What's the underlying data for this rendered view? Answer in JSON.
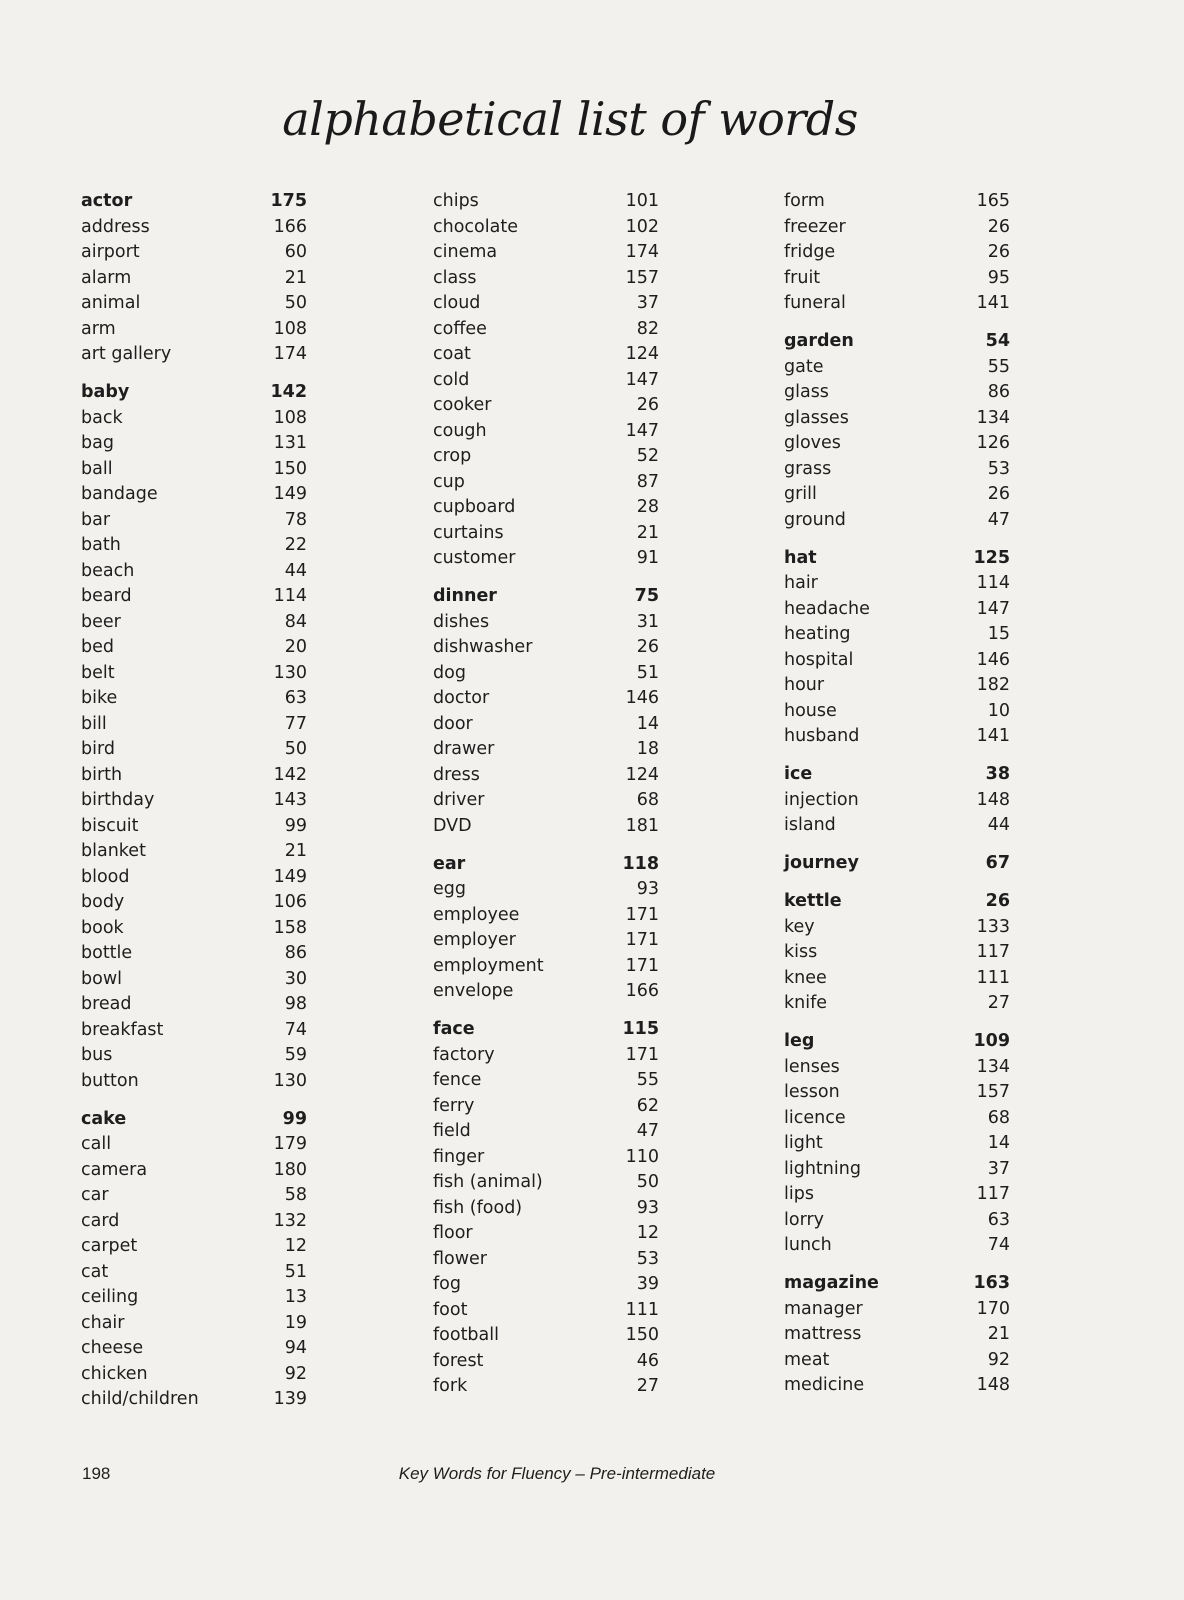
{
  "title": "alphabetical list of words",
  "columns": [
    [
      {
        "word": "actor",
        "page": "175",
        "bold": true
      },
      {
        "word": "address",
        "page": "166"
      },
      {
        "word": "airport",
        "page": "60"
      },
      {
        "word": "alarm",
        "page": "21"
      },
      {
        "word": "animal",
        "page": "50"
      },
      {
        "word": "arm",
        "page": "108"
      },
      {
        "word": "art gallery",
        "page": "174"
      },
      {
        "word": "baby",
        "page": "142",
        "bold": true
      },
      {
        "word": "back",
        "page": "108"
      },
      {
        "word": "bag",
        "page": "131"
      },
      {
        "word": "ball",
        "page": "150"
      },
      {
        "word": "bandage",
        "page": "149"
      },
      {
        "word": "bar",
        "page": "78"
      },
      {
        "word": "bath",
        "page": "22"
      },
      {
        "word": "beach",
        "page": "44"
      },
      {
        "word": "beard",
        "page": "114"
      },
      {
        "word": "beer",
        "page": "84"
      },
      {
        "word": "bed",
        "page": "20"
      },
      {
        "word": "belt",
        "page": "130"
      },
      {
        "word": "bike",
        "page": "63"
      },
      {
        "word": "bill",
        "page": "77"
      },
      {
        "word": "bird",
        "page": "50"
      },
      {
        "word": "birth",
        "page": "142"
      },
      {
        "word": "birthday",
        "page": "143"
      },
      {
        "word": "biscuit",
        "page": "99"
      },
      {
        "word": "blanket",
        "page": "21"
      },
      {
        "word": "blood",
        "page": "149"
      },
      {
        "word": "body",
        "page": "106"
      },
      {
        "word": "book",
        "page": "158"
      },
      {
        "word": "bottle",
        "page": "86"
      },
      {
        "word": "bowl",
        "page": "30"
      },
      {
        "word": "bread",
        "page": "98"
      },
      {
        "word": "breakfast",
        "page": "74"
      },
      {
        "word": "bus",
        "page": "59"
      },
      {
        "word": "button",
        "page": "130"
      },
      {
        "word": "cake",
        "page": "99",
        "bold": true
      },
      {
        "word": "call",
        "page": "179"
      },
      {
        "word": "camera",
        "page": "180"
      },
      {
        "word": "car",
        "page": "58"
      },
      {
        "word": "card",
        "page": "132"
      },
      {
        "word": "carpet",
        "page": "12"
      },
      {
        "word": "cat",
        "page": "51"
      },
      {
        "word": "ceiling",
        "page": "13"
      },
      {
        "word": "chair",
        "page": "19"
      },
      {
        "word": "cheese",
        "page": "94"
      },
      {
        "word": "chicken",
        "page": "92"
      },
      {
        "word": "child/children",
        "page": "139"
      }
    ],
    [
      {
        "word": "chips",
        "page": "101"
      },
      {
        "word": "chocolate",
        "page": "102"
      },
      {
        "word": "cinema",
        "page": "174"
      },
      {
        "word": "class",
        "page": "157"
      },
      {
        "word": "cloud",
        "page": "37"
      },
      {
        "word": "coffee",
        "page": "82"
      },
      {
        "word": "coat",
        "page": "124"
      },
      {
        "word": "cold",
        "page": "147"
      },
      {
        "word": "cooker",
        "page": "26"
      },
      {
        "word": "cough",
        "page": "147"
      },
      {
        "word": "crop",
        "page": "52"
      },
      {
        "word": "cup",
        "page": "87"
      },
      {
        "word": "cupboard",
        "page": "28"
      },
      {
        "word": "curtains",
        "page": "21"
      },
      {
        "word": "customer",
        "page": "91"
      },
      {
        "word": "dinner",
        "page": "75",
        "bold": true
      },
      {
        "word": "dishes",
        "page": "31"
      },
      {
        "word": "dishwasher",
        "page": "26"
      },
      {
        "word": "dog",
        "page": "51"
      },
      {
        "word": "doctor",
        "page": "146"
      },
      {
        "word": "door",
        "page": "14"
      },
      {
        "word": "drawer",
        "page": "18"
      },
      {
        "word": "dress",
        "page": "124"
      },
      {
        "word": "driver",
        "page": "68"
      },
      {
        "word": "DVD",
        "page": "181"
      },
      {
        "word": "ear",
        "page": "118",
        "bold": true
      },
      {
        "word": "egg",
        "page": "93"
      },
      {
        "word": "employee",
        "page": "171"
      },
      {
        "word": "employer",
        "page": "171"
      },
      {
        "word": "employment",
        "page": "171"
      },
      {
        "word": "envelope",
        "page": "166"
      },
      {
        "word": "face",
        "page": "115",
        "bold": true
      },
      {
        "word": "factory",
        "page": "171"
      },
      {
        "word": "fence",
        "page": "55"
      },
      {
        "word": "ferry",
        "page": "62"
      },
      {
        "word": "field",
        "page": "47"
      },
      {
        "word": "finger",
        "page": "110"
      },
      {
        "word": "fish (animal)",
        "page": "50"
      },
      {
        "word": "fish (food)",
        "page": "93"
      },
      {
        "word": "floor",
        "page": "12"
      },
      {
        "word": "flower",
        "page": "53"
      },
      {
        "word": "fog",
        "page": "39"
      },
      {
        "word": "foot",
        "page": "111"
      },
      {
        "word": "football",
        "page": "150"
      },
      {
        "word": "forest",
        "page": "46"
      },
      {
        "word": "fork",
        "page": "27"
      }
    ],
    [
      {
        "word": "form",
        "page": "165"
      },
      {
        "word": "freezer",
        "page": "26"
      },
      {
        "word": "fridge",
        "page": "26"
      },
      {
        "word": "fruit",
        "page": "95"
      },
      {
        "word": "funeral",
        "page": "141"
      },
      {
        "word": "garden",
        "page": "54",
        "bold": true
      },
      {
        "word": "gate",
        "page": "55"
      },
      {
        "word": "glass",
        "page": "86"
      },
      {
        "word": "glasses",
        "page": "134"
      },
      {
        "word": "gloves",
        "page": "126"
      },
      {
        "word": "grass",
        "page": "53"
      },
      {
        "word": "grill",
        "page": "26"
      },
      {
        "word": "ground",
        "page": "47"
      },
      {
        "word": "hat",
        "page": "125",
        "bold": true
      },
      {
        "word": "hair",
        "page": "114"
      },
      {
        "word": "headache",
        "page": "147"
      },
      {
        "word": "heating",
        "page": "15"
      },
      {
        "word": "hospital",
        "page": "146"
      },
      {
        "word": "hour",
        "page": "182"
      },
      {
        "word": "house",
        "page": "10"
      },
      {
        "word": "husband",
        "page": "141"
      },
      {
        "word": "ice",
        "page": "38",
        "bold": true
      },
      {
        "word": "injection",
        "page": "148"
      },
      {
        "word": "island",
        "page": "44"
      },
      {
        "word": "journey",
        "page": "67",
        "bold": true
      },
      {
        "word": "kettle",
        "page": "26",
        "bold": true
      },
      {
        "word": "key",
        "page": "133"
      },
      {
        "word": "kiss",
        "page": "117"
      },
      {
        "word": "knee",
        "page": "111"
      },
      {
        "word": "knife",
        "page": "27"
      },
      {
        "word": "leg",
        "page": "109",
        "bold": true
      },
      {
        "word": "lenses",
        "page": "134"
      },
      {
        "word": "lesson",
        "page": "157"
      },
      {
        "word": "licence",
        "page": "68"
      },
      {
        "word": "light",
        "page": "14"
      },
      {
        "word": "lightning",
        "page": "37"
      },
      {
        "word": "lips",
        "page": "117"
      },
      {
        "word": "lorry",
        "page": "63"
      },
      {
        "word": "lunch",
        "page": "74"
      },
      {
        "word": "magazine",
        "page": "163",
        "bold": true
      },
      {
        "word": "manager",
        "page": "170"
      },
      {
        "word": "mattress",
        "page": "21"
      },
      {
        "word": "meat",
        "page": "92"
      },
      {
        "word": "medicine",
        "page": "148"
      }
    ]
  ],
  "footer": {
    "page_number": "198",
    "book_title": "Key Words for Fluency – Pre-intermediate"
  }
}
